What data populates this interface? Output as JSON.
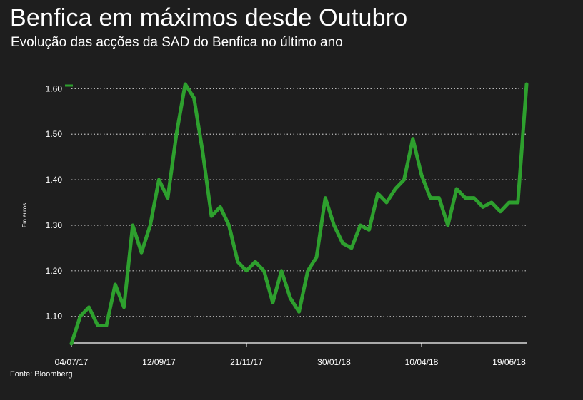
{
  "colors": {
    "background": "#1e1e1e",
    "line": "#2ea02e",
    "grid": "#bbbbbb",
    "text": "#ffffff"
  },
  "chart_data": {
    "type": "line",
    "title": "Benfica em máximos desde Outubro",
    "subtitle": "Evolução das acções da SAD do Benfica no último ano",
    "ylabel": "Em euros",
    "source": "Fonte: Bloomberg",
    "ylim": [
      1.04,
      1.61
    ],
    "yticks": [
      "1.10",
      "1.20",
      "1.30",
      "1.40",
      "1.50",
      "1.60"
    ],
    "ytick_values": [
      1.1,
      1.2,
      1.3,
      1.4,
      1.5,
      1.6
    ],
    "xticks": [
      "04/07/17",
      "12/09/17",
      "21/11/17",
      "30/01/18",
      "10/04/18",
      "19/06/18"
    ],
    "grid": "horizontal dotted",
    "legend": "none",
    "series": [
      {
        "values": [
          1.04,
          1.1,
          1.12,
          1.08,
          1.08,
          1.17,
          1.12,
          1.3,
          1.24,
          1.3,
          1.4,
          1.36,
          1.5,
          1.61,
          1.58,
          1.46,
          1.32,
          1.34,
          1.3,
          1.22,
          1.2,
          1.22,
          1.2,
          1.13,
          1.2,
          1.14,
          1.11,
          1.2,
          1.23,
          1.36,
          1.3,
          1.26,
          1.25,
          1.3,
          1.29,
          1.37,
          1.35,
          1.38,
          1.4,
          1.49,
          1.41,
          1.36,
          1.36,
          1.3,
          1.38,
          1.36,
          1.36,
          1.34,
          1.35,
          1.33,
          1.35,
          1.35,
          1.61
        ]
      }
    ]
  }
}
